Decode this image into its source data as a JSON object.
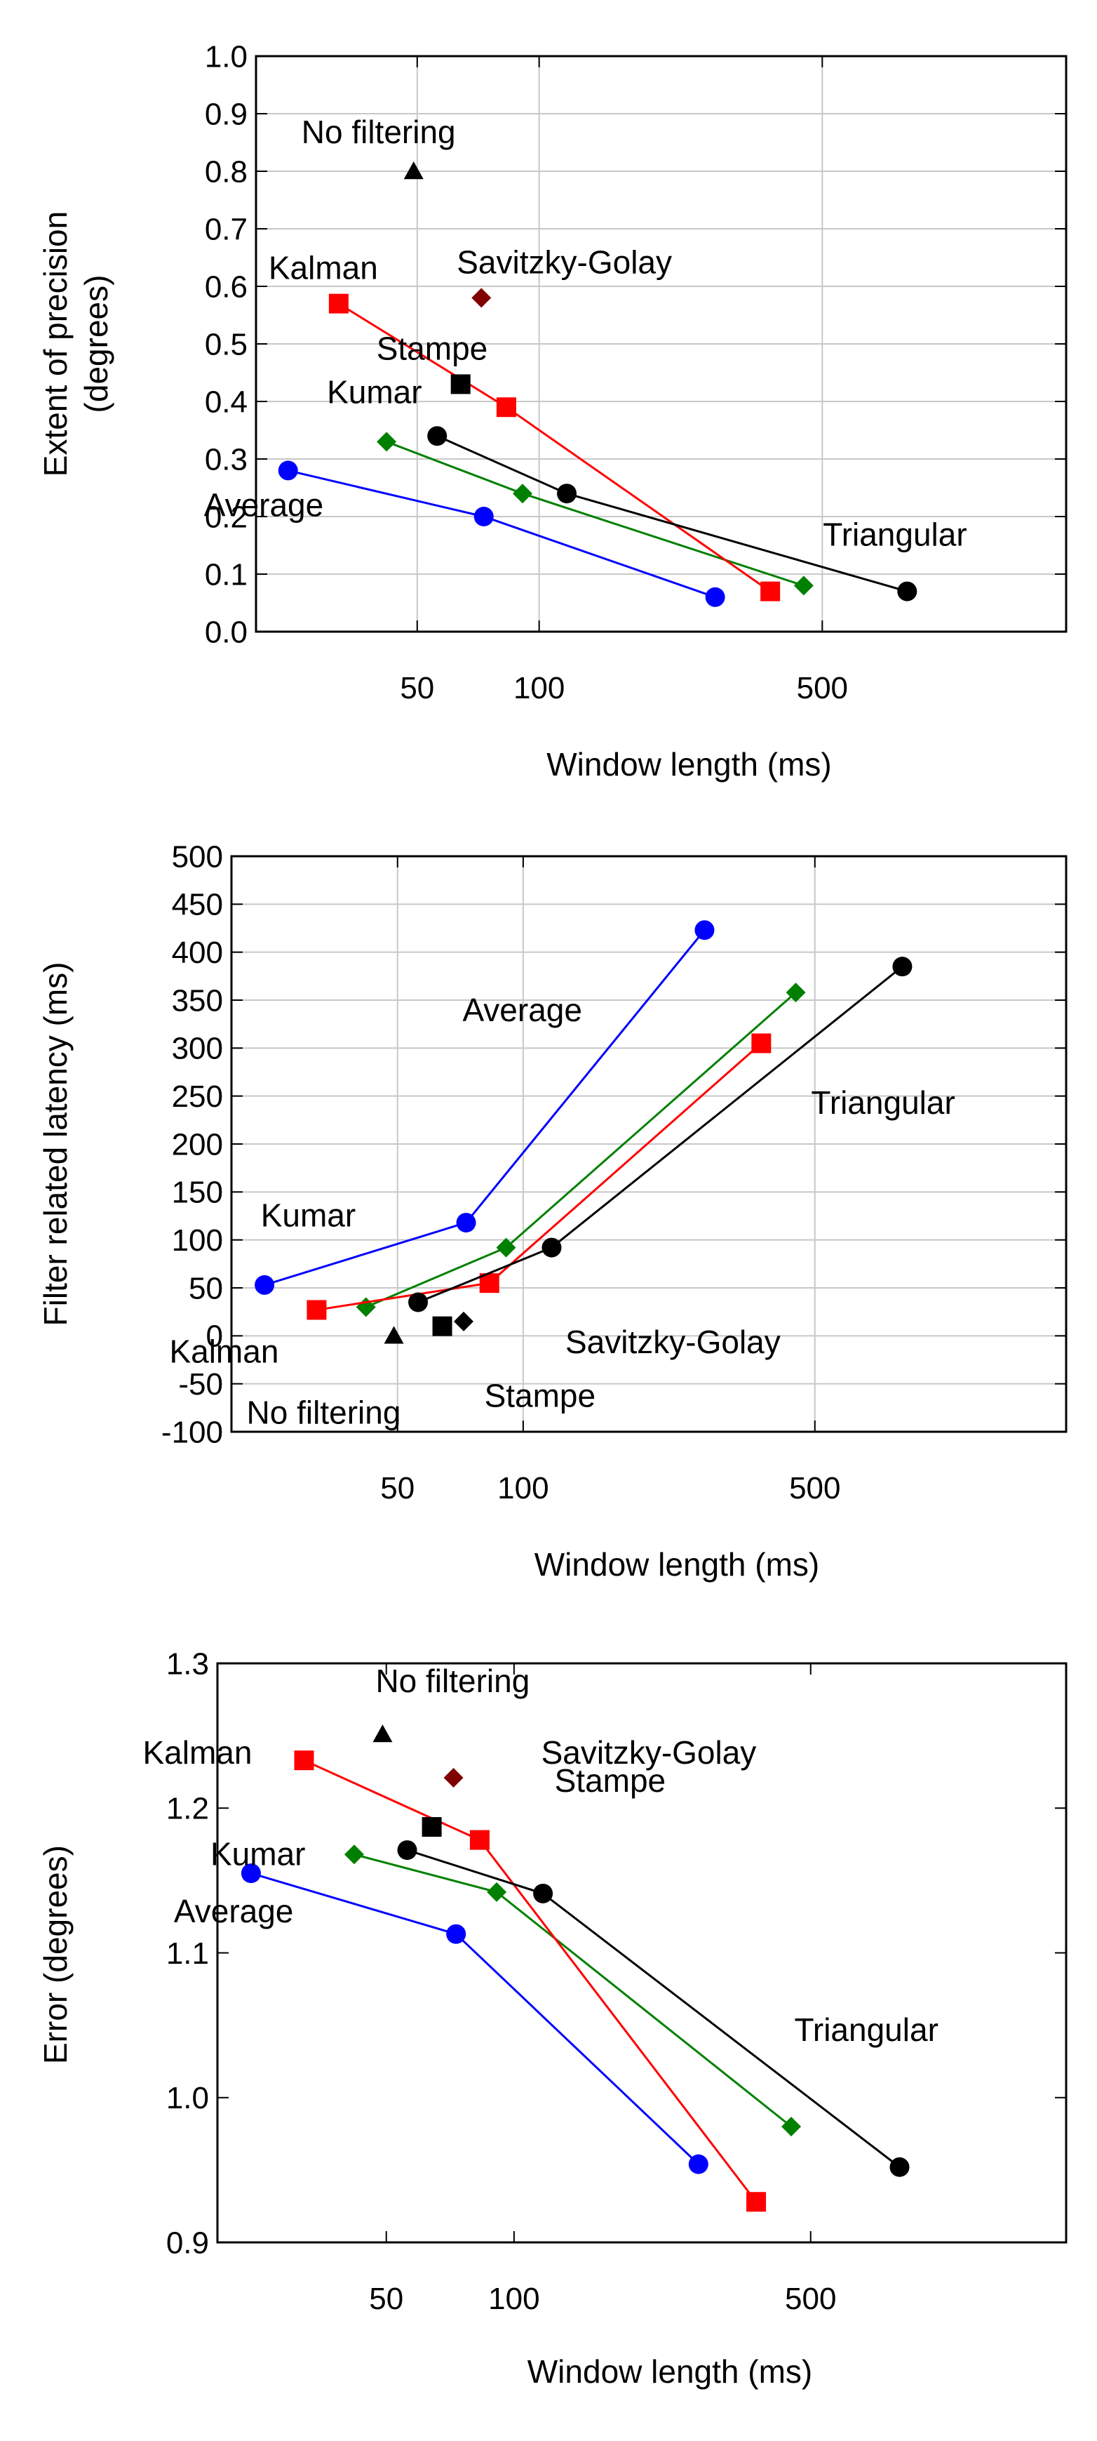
{
  "chart_data": [
    {
      "type": "line",
      "x_scale": "log",
      "xlabel": "Window length (ms)",
      "ylabel": "Extent of precision (degrees)",
      "ylim": [
        0.0,
        1.0
      ],
      "y_ticks": [
        "0.0",
        "0.1",
        "0.2",
        "0.3",
        "0.4",
        "0.5",
        "0.6",
        "0.7",
        "0.8",
        "0.9",
        "1.0"
      ],
      "x_ticks": [
        {
          "value": 50,
          "label": "50"
        },
        {
          "value": 100,
          "label": "100"
        },
        {
          "value": 500,
          "label": "500"
        }
      ],
      "grid": true,
      "series": [
        {
          "name": "Average",
          "color": "#0000ff",
          "marker": "circle",
          "x": [
            24,
            73,
            272
          ],
          "y": [
            0.28,
            0.2,
            0.06
          ],
          "label_at": [
            0,
            0.28
          ]
        },
        {
          "name": "Kumar",
          "color": "#008000",
          "marker": "diamond",
          "x": [
            42,
            91,
            450
          ],
          "y": [
            0.33,
            0.24,
            0.08
          ],
          "label_at": [
            0,
            0.33
          ]
        },
        {
          "name": "Kalman",
          "color": "#ff0000",
          "marker": "square",
          "x": [
            32,
            83,
            372
          ],
          "y": [
            0.57,
            0.39,
            0.07
          ],
          "label_at": [
            0,
            0.57
          ]
        },
        {
          "name": "Triangular",
          "color": "#000000",
          "marker": "circle",
          "x": [
            56,
            117,
            810
          ],
          "y": [
            0.34,
            0.24,
            0.07
          ],
          "label_at": [
            2,
            0.07
          ]
        },
        {
          "name": "Stampe",
          "color": "#000000",
          "marker": "square",
          "x": [
            64
          ],
          "y": [
            0.43
          ],
          "label_at": [
            0,
            0.43
          ]
        },
        {
          "name": "Savitzky-Golay",
          "color": "#800000",
          "marker": "diamond",
          "x": [
            72
          ],
          "y": [
            0.58
          ],
          "label_at": [
            0,
            0.58
          ]
        },
        {
          "name": "No filtering",
          "color": "#000000",
          "marker": "triangle",
          "x": [
            49
          ],
          "y": [
            0.8
          ],
          "label_at": [
            0,
            0.8
          ]
        }
      ]
    },
    {
      "type": "line",
      "x_scale": "log",
      "xlabel": "Window length (ms)",
      "ylabel": "Filter related latency (ms)",
      "ylim": [
        -100,
        500
      ],
      "y_ticks": [
        "-100",
        "-50",
        "0",
        "50",
        "100",
        "150",
        "200",
        "250",
        "300",
        "350",
        "400",
        "450",
        "500"
      ],
      "x_ticks": [
        {
          "value": 50,
          "label": "50"
        },
        {
          "value": 100,
          "label": "100"
        },
        {
          "value": 500,
          "label": "500"
        }
      ],
      "grid": true,
      "series": [
        {
          "name": "Average",
          "color": "#0000ff",
          "marker": "circle",
          "x": [
            24,
            73,
            272
          ],
          "y": [
            53,
            118,
            423
          ],
          "label_at": [
            2,
            423
          ]
        },
        {
          "name": "Kumar",
          "color": "#008000",
          "marker": "diamond",
          "x": [
            42,
            91,
            450
          ],
          "y": [
            30,
            92,
            358
          ],
          "label_at": [
            0,
            30
          ]
        },
        {
          "name": "Kalman",
          "color": "#ff0000",
          "marker": "square",
          "x": [
            32,
            83,
            372
          ],
          "y": [
            27,
            55,
            305
          ],
          "label_at": [
            0,
            27
          ]
        },
        {
          "name": "Triangular",
          "color": "#000000",
          "marker": "circle",
          "x": [
            56,
            117,
            810
          ],
          "y": [
            35,
            92,
            385
          ],
          "label_at": [
            2,
            385
          ]
        },
        {
          "name": "Stampe",
          "color": "#000000",
          "marker": "square",
          "x": [
            64
          ],
          "y": [
            10
          ],
          "label_at": [
            0,
            10
          ]
        },
        {
          "name": "Savitzky-Golay",
          "color": "#000000",
          "marker": "diamond",
          "x": [
            72
          ],
          "y": [
            15
          ],
          "label_at": [
            0,
            15
          ]
        },
        {
          "name": "No filtering",
          "color": "#000000",
          "marker": "triangle",
          "x": [
            49
          ],
          "y": [
            0
          ],
          "label_at": [
            0,
            0
          ]
        }
      ]
    },
    {
      "type": "line",
      "x_scale": "log",
      "xlabel": "Window length (ms)",
      "ylabel": "Error (degrees)",
      "ylim": [
        0.9,
        1.3
      ],
      "y_ticks": [
        "0.9",
        "1.0",
        "1.1",
        "1.2",
        "1.3"
      ],
      "x_ticks": [
        {
          "value": 50,
          "label": "50"
        },
        {
          "value": 100,
          "label": "100"
        },
        {
          "value": 500,
          "label": "500"
        }
      ],
      "grid": false,
      "series": [
        {
          "name": "Average",
          "color": "#0000ff",
          "marker": "circle",
          "x": [
            24,
            73,
            272
          ],
          "y": [
            1.155,
            1.113,
            0.954
          ],
          "label_at": [
            0,
            1.155
          ]
        },
        {
          "name": "Kumar",
          "color": "#008000",
          "marker": "diamond",
          "x": [
            42,
            91,
            450
          ],
          "y": [
            1.168,
            1.142,
            0.98
          ],
          "label_at": [
            0,
            1.168
          ]
        },
        {
          "name": "Kalman",
          "color": "#ff0000",
          "marker": "square",
          "x": [
            32,
            83,
            372
          ],
          "y": [
            1.233,
            1.178,
            0.928
          ],
          "label_at": [
            0,
            1.233
          ]
        },
        {
          "name": "Triangular",
          "color": "#000000",
          "marker": "circle",
          "x": [
            56,
            117,
            810
          ],
          "y": [
            1.171,
            1.141,
            0.952
          ],
          "label_at": [
            2,
            0.952
          ]
        },
        {
          "name": "Stampe",
          "color": "#000000",
          "marker": "square",
          "x": [
            64
          ],
          "y": [
            1.187
          ],
          "label_at": [
            0,
            1.187
          ]
        },
        {
          "name": "Savitzky-Golay",
          "color": "#800000",
          "marker": "diamond",
          "x": [
            72
          ],
          "y": [
            1.221
          ],
          "label_at": [
            0,
            1.221
          ]
        },
        {
          "name": "No filtering",
          "color": "#000000",
          "marker": "triangle",
          "x": [
            49
          ],
          "y": [
            1.251
          ],
          "label_at": [
            0,
            1.251
          ]
        }
      ]
    }
  ]
}
